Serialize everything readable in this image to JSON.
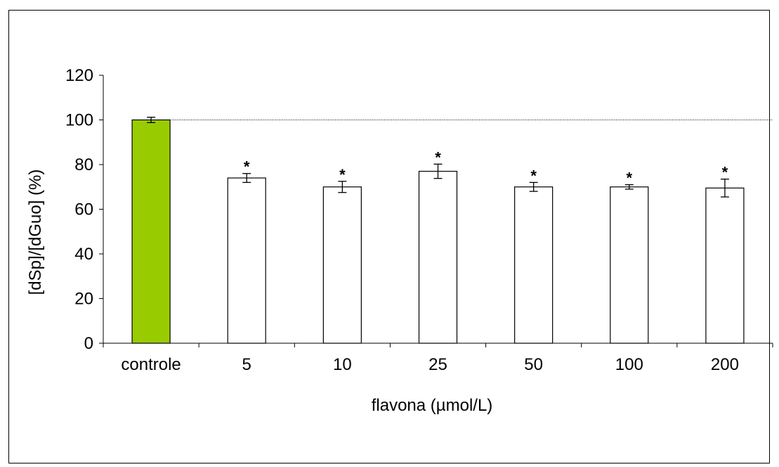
{
  "chart_data": {
    "type": "bar",
    "title": "",
    "xlabel": "flavona (µmol/L)",
    "ylabel": "[dSp]/[dGuo] (%)",
    "ylim": [
      0,
      120
    ],
    "yticks": [
      0,
      20,
      40,
      60,
      80,
      100,
      120
    ],
    "categories": [
      "controle",
      "5",
      "10",
      "25",
      "50",
      "100",
      "200"
    ],
    "values": [
      100,
      74,
      70,
      77,
      70,
      70,
      69.5
    ],
    "errors": [
      1.2,
      2.0,
      2.5,
      3.2,
      2.0,
      1.0,
      4.0
    ],
    "significance": [
      "",
      "*",
      "*",
      "*",
      "*",
      "*",
      "*"
    ],
    "reference_line": 100,
    "bar_colors": [
      "#99cc00",
      "#ffffff",
      "#ffffff",
      "#ffffff",
      "#ffffff",
      "#ffffff",
      "#ffffff"
    ],
    "grid": false,
    "legend": "none"
  }
}
